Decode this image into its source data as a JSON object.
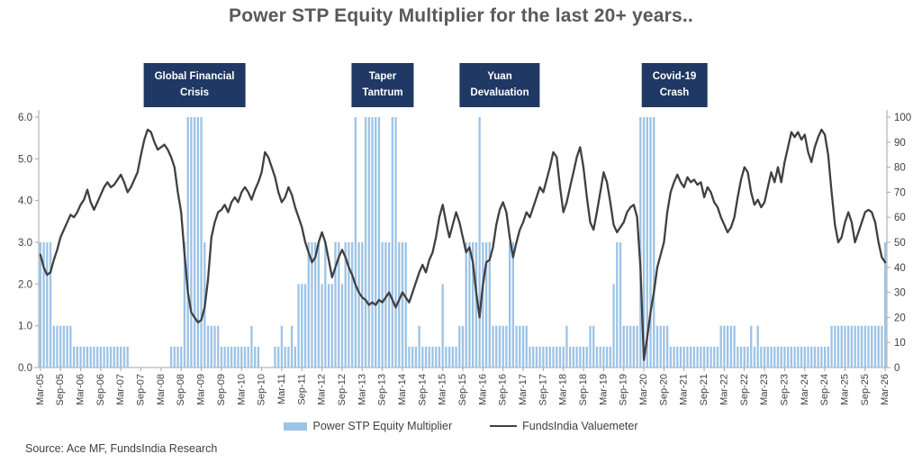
{
  "title": "Power STP Equity Multiplier for the last 20+ years..",
  "source": "Source: Ace MF, FundsIndia Research",
  "colors": {
    "bar": "#9DC3E6",
    "line": "#404040",
    "annotation_bg": "#1F3864",
    "annotation_text": "#FFFFFF",
    "axis": "#A6A6A6",
    "tick_text": "#404040",
    "title_text": "#595959"
  },
  "legend": {
    "bar_label": "Power STP Equity Multiplier",
    "line_label": "FundsIndia Valuemeter"
  },
  "annotations": [
    {
      "label": "Global Financial\nCrisis",
      "center_month": 46
    },
    {
      "label": "Taper\nTantrum",
      "center_month": 102
    },
    {
      "label": "Yuan\nDevaluation",
      "center_month": 137
    },
    {
      "label": "Covid-19\nCrash",
      "center_month": 189
    }
  ],
  "chart_data": {
    "type": "bar",
    "title": "Power STP Equity Multiplier for the last 20+ years..",
    "xlabel": "",
    "ylabel_left": "Power STP Equity Multiplier",
    "ylabel_right": "FundsIndia Valuemeter",
    "frequency": "monthly",
    "x_start": "Mar-2005",
    "x_end": "Mar-2026",
    "grid": false,
    "legend_position": "bottom",
    "left_axis": {
      "min": 0,
      "max": 6,
      "ticks": [
        "0.0",
        "1.0",
        "2.0",
        "3.0",
        "4.0",
        "5.0",
        "6.0"
      ]
    },
    "right_axis": {
      "min": 0,
      "max": 100,
      "ticks": [
        "0",
        "10",
        "20",
        "30",
        "40",
        "50",
        "60",
        "70",
        "80",
        "90",
        "100"
      ]
    },
    "x_tick_every_months": 6,
    "x_tick_labels": [
      "Mar-05",
      "Sep-05",
      "Mar-06",
      "Sep-06",
      "Mar-07",
      "Sep-07",
      "Mar-08",
      "Sep-08",
      "Mar-09",
      "Sep-09",
      "Mar-10",
      "Sep-10",
      "Mar-11",
      "Sep-11",
      "Mar-12",
      "Sep-12",
      "Mar-13",
      "Sep-13",
      "Mar-14",
      "Sep-14",
      "Mar-15",
      "Sep-15",
      "Mar-16",
      "Sep-16",
      "Mar-17",
      "Sep-17",
      "Mar-18",
      "Sep-18",
      "Mar-19",
      "Sep-19",
      "Mar-20",
      "Sep-20",
      "Mar-21",
      "Sep-21",
      "Mar-22",
      "Sep-22",
      "Mar-23",
      "Sep-23",
      "Mar-24",
      "Sep-24",
      "Mar-25",
      "Sep-25",
      "Mar-26"
    ],
    "series": [
      {
        "name": "Power STP Equity Multiplier",
        "type": "bar",
        "axis": "left",
        "values": [
          3,
          3,
          3,
          3,
          1,
          1,
          1,
          1,
          1,
          1,
          0.5,
          0.5,
          0.5,
          0.5,
          0.5,
          0.5,
          0.5,
          0.5,
          0.5,
          0.5,
          0.5,
          0.5,
          0.5,
          0.5,
          0.5,
          0.5,
          0.5,
          0,
          0,
          0,
          0,
          0,
          0,
          0,
          0,
          0,
          0,
          0,
          0,
          0.5,
          0.5,
          0.5,
          0.5,
          3,
          6,
          6,
          6,
          6,
          6,
          3,
          1,
          1,
          1,
          1,
          0.5,
          0.5,
          0.5,
          0.5,
          0.5,
          0.5,
          0.5,
          0.5,
          0.5,
          1,
          0.5,
          0.5,
          0,
          0,
          0,
          0,
          0.5,
          0.5,
          1,
          0.5,
          0.5,
          1,
          0.5,
          2,
          2,
          2,
          3,
          3,
          3,
          3,
          2,
          3,
          2,
          2,
          3,
          3,
          2,
          3,
          3,
          3,
          6,
          3,
          3,
          6,
          6,
          6,
          6,
          6,
          3,
          3,
          3,
          6,
          6,
          3,
          3,
          3,
          0.5,
          0.5,
          0.5,
          1,
          0.5,
          0.5,
          0.5,
          0.5,
          0.5,
          0.5,
          2,
          0.5,
          0.5,
          0.5,
          0.5,
          1,
          1,
          3,
          3,
          3,
          3,
          6,
          3,
          3,
          3,
          1,
          1,
          1,
          1,
          1,
          3,
          3,
          1,
          1,
          1,
          1,
          0.5,
          0.5,
          0.5,
          0.5,
          0.5,
          0.5,
          0.5,
          0.5,
          0.5,
          0.5,
          0.5,
          1,
          0.5,
          0.5,
          0.5,
          0.5,
          0.5,
          0.5,
          1,
          1,
          0.5,
          0.5,
          0.5,
          0.5,
          0.5,
          2,
          3,
          3,
          1,
          1,
          1,
          1,
          1,
          6,
          6,
          6,
          6,
          6,
          1,
          1,
          1,
          1,
          0.5,
          0.5,
          0.5,
          0.5,
          0.5,
          0.5,
          0.5,
          0.5,
          0.5,
          0.5,
          0.5,
          0.5,
          0.5,
          0.5,
          0.5,
          1,
          1,
          1,
          1,
          1,
          0.5,
          0.5,
          0.5,
          0.5,
          1,
          0.5,
          1,
          0.5,
          0.5,
          0.5,
          0.5,
          0.5,
          0.5,
          0.5,
          0.5,
          0.5,
          0.5,
          0.5,
          0.5,
          0.5,
          0.5,
          0.5,
          0.5,
          0.5,
          0.5,
          0.5,
          0.5,
          0.5,
          1,
          1,
          1,
          1,
          1,
          1,
          1,
          1,
          1,
          1,
          1,
          1,
          1,
          1,
          1,
          1,
          3
        ]
      },
      {
        "name": "FundsIndia Valuemeter",
        "type": "line",
        "axis": "right",
        "values": [
          45,
          40,
          37,
          38,
          43,
          47,
          52,
          55,
          58,
          61,
          60,
          62,
          65,
          67,
          71,
          66,
          63,
          66,
          69,
          72,
          74,
          72,
          73,
          75,
          77,
          74,
          70,
          72,
          75,
          78,
          85,
          91,
          95,
          94,
          90,
          87,
          88,
          89,
          87,
          84,
          80,
          70,
          62,
          45,
          30,
          22,
          20,
          18,
          19,
          24,
          35,
          52,
          58,
          62,
          63,
          65,
          62,
          66,
          68,
          66,
          70,
          72,
          70,
          67,
          71,
          74,
          78,
          86,
          84,
          80,
          76,
          70,
          66,
          68,
          72,
          69,
          64,
          60,
          56,
          50,
          46,
          42,
          44,
          50,
          54,
          50,
          43,
          36,
          40,
          44,
          47,
          44,
          40,
          37,
          33,
          30,
          28,
          27,
          25,
          26,
          25,
          27,
          26,
          28,
          30,
          27,
          24,
          27,
          30,
          28,
          26,
          30,
          34,
          38,
          41,
          38,
          43,
          46,
          52,
          60,
          65,
          58,
          52,
          57,
          62,
          58,
          52,
          46,
          48,
          42,
          30,
          20,
          33,
          42,
          43,
          48,
          57,
          63,
          66,
          62,
          52,
          44,
          50,
          55,
          58,
          62,
          60,
          64,
          68,
          72,
          70,
          75,
          80,
          86,
          84,
          72,
          62,
          66,
          72,
          78,
          84,
          88,
          80,
          68,
          58,
          55,
          62,
          70,
          78,
          74,
          66,
          57,
          54,
          56,
          58,
          62,
          64,
          65,
          60,
          40,
          3,
          12,
          22,
          30,
          40,
          45,
          50,
          62,
          70,
          74,
          77,
          74,
          72,
          76,
          74,
          75,
          73,
          74,
          68,
          72,
          70,
          66,
          64,
          60,
          57,
          54,
          56,
          60,
          68,
          75,
          80,
          78,
          70,
          65,
          67,
          64,
          66,
          72,
          78,
          74,
          80,
          74,
          82,
          88,
          94,
          92,
          94,
          91,
          93,
          86,
          82,
          88,
          92,
          95,
          93,
          85,
          70,
          57,
          50,
          52,
          58,
          62,
          58,
          50,
          54,
          58,
          62,
          63,
          62,
          58,
          50,
          44,
          42
        ]
      }
    ]
  }
}
